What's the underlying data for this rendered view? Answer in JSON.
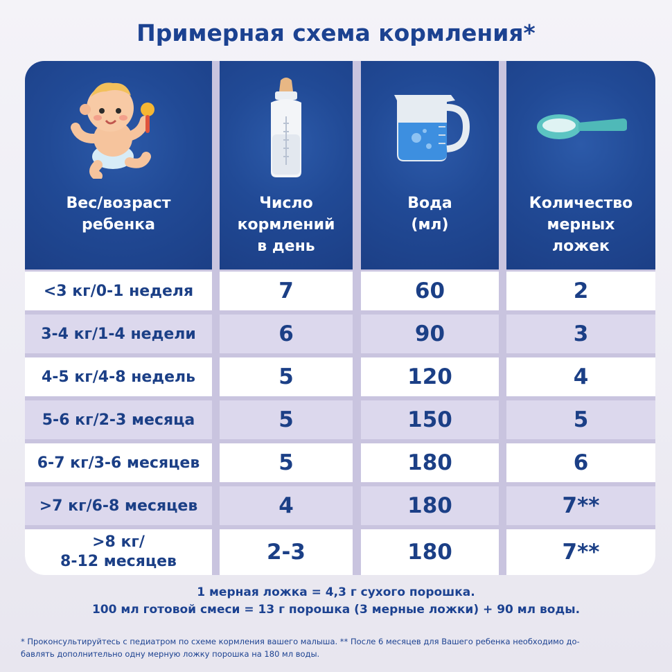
{
  "title": "Примерная схема кормления*",
  "headers": [
    {
      "label": "Вес/возраст\nребенка",
      "icon": "baby-icon"
    },
    {
      "label": "Число\nкормлений\nв день",
      "icon": "baby-bottle-icon"
    },
    {
      "label": "Вода\n(мл)",
      "icon": "water-jug-icon"
    },
    {
      "label": "Количество\nмерных\nложек",
      "icon": "measuring-spoon-icon"
    }
  ],
  "rows": [
    {
      "age": "<3 кг/0-1 неделя",
      "feedings": "7",
      "water": "60",
      "spoons": "2"
    },
    {
      "age": "3-4 кг/1-4 недели",
      "feedings": "6",
      "water": "90",
      "spoons": "3"
    },
    {
      "age": "4-5 кг/4-8 недель",
      "feedings": "5",
      "water": "120",
      "spoons": "4"
    },
    {
      "age": "5-6 кг/2-3 месяца",
      "feedings": "5",
      "water": "150",
      "spoons": "5"
    },
    {
      "age": "6-7 кг/3-6 месяцев",
      "feedings": "5",
      "water": "180",
      "spoons": "6"
    },
    {
      "age": ">7 кг/6-8 месяцев",
      "feedings": "4",
      "water": "180",
      "spoons": "7**"
    },
    {
      "age": ">8 кг/\n8-12 месяцев",
      "feedings": "2-3",
      "water": "180",
      "spoons": "7**"
    }
  ],
  "notes": [
    "1 мерная ложка = 4,3 г сухого порошка.",
    "100 мл готовой смеси = 13 г порошка (3 мерные ложки) + 90 мл воды."
  ],
  "footnote_line1": "* Проконсультируйтесь с педиатром по схеме кормления вашего малыша. ** После 6 месяцев для Вашего ребенка необходимо до-",
  "footnote_line2": "бавлять дополнительно одну мерную ложку порошка на 180 мл воды.",
  "colors": {
    "header_blue": "#214a96",
    "text_blue": "#1b3f86",
    "alt_row": "#dcd8ed"
  }
}
